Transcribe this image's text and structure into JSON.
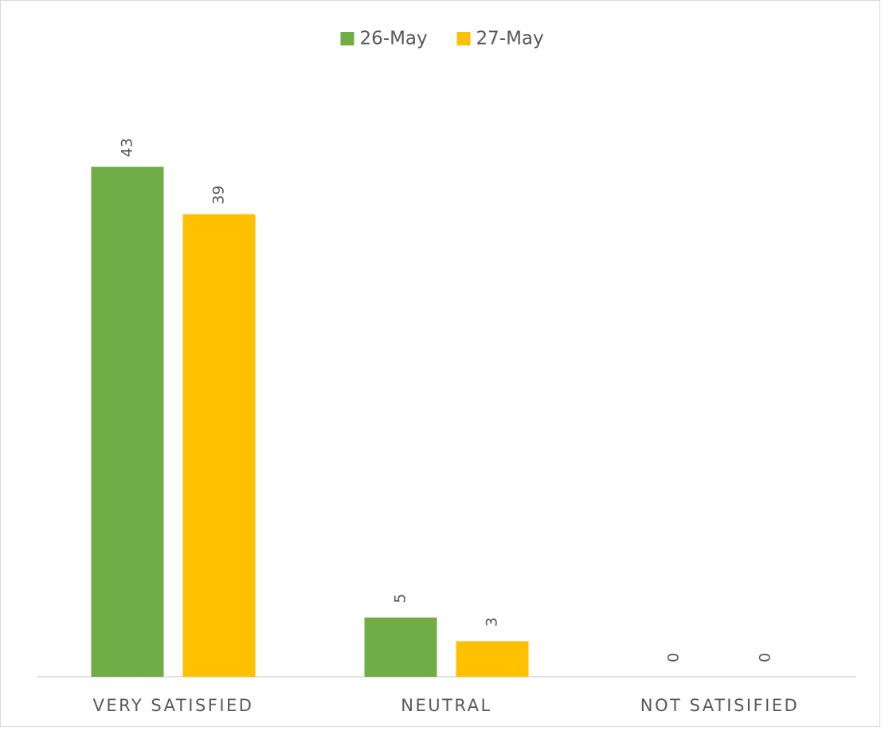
{
  "chart_data": {
    "type": "bar",
    "categories": [
      "VERY SATISFIED",
      "NEUTRAL",
      "NOT SATISIFIED"
    ],
    "series": [
      {
        "name": "26-May",
        "color": "#70ad47",
        "values": [
          43,
          5,
          0
        ]
      },
      {
        "name": "27-May",
        "color": "#ffc000",
        "values": [
          39,
          3,
          0
        ]
      }
    ],
    "ylim": [
      0,
      50
    ],
    "legend": "top"
  }
}
